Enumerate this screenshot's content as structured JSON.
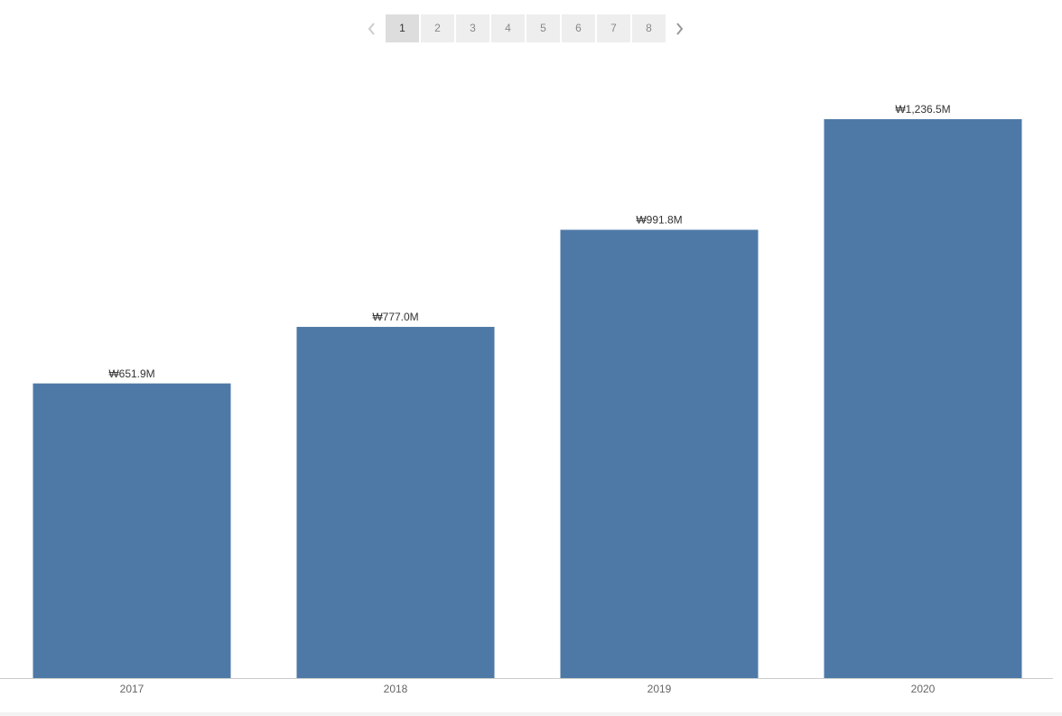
{
  "pagination": {
    "pages": [
      1,
      2,
      3,
      4,
      5,
      6,
      7,
      8
    ],
    "current": 1
  },
  "chart_data": {
    "type": "bar",
    "categories": [
      "2017",
      "2018",
      "2019",
      "2020"
    ],
    "values": [
      651.9,
      777.0,
      991.8,
      1236.5
    ],
    "value_labels": [
      "₩651.9M",
      "₩777.0M",
      "₩991.8M",
      "₩1,236.5M"
    ],
    "color": "#4e79a7"
  }
}
